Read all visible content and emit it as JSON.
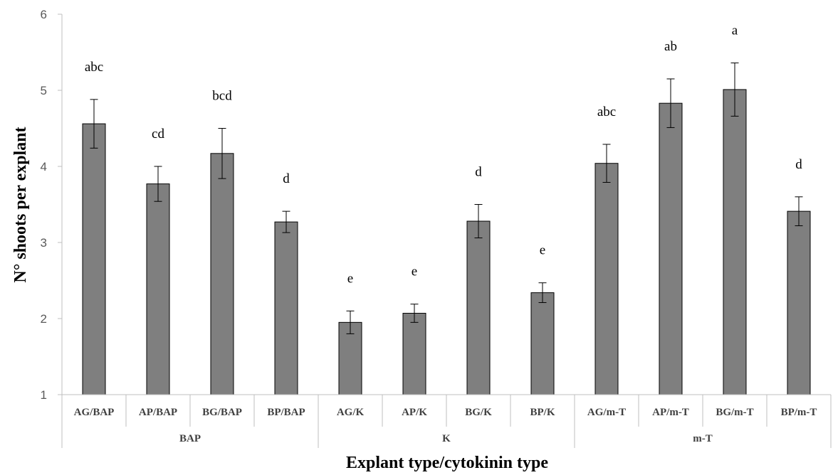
{
  "chart_data": {
    "type": "bar",
    "title": "",
    "xlabel": "Explant type/cytokinin type",
    "ylabel": "N° shoots per explant",
    "ylim": [
      1,
      6
    ],
    "yticks": [
      1,
      2,
      3,
      4,
      5,
      6
    ],
    "grid": false,
    "legend": "none",
    "bar_color": "#7f7f7f",
    "categories": [
      "AG/BAP",
      "AP/BAP",
      "BG/BAP",
      "BP/BAP",
      "AG/K",
      "AP/K",
      "BG/K",
      "BP/K",
      "AG/m-T",
      "AP/m-T",
      "BG/m-T",
      "BP/m-T"
    ],
    "values": [
      4.56,
      3.77,
      4.17,
      3.27,
      1.95,
      2.07,
      3.28,
      2.34,
      4.04,
      4.83,
      5.01,
      3.41
    ],
    "errors": [
      0.32,
      0.23,
      0.33,
      0.14,
      0.15,
      0.12,
      0.22,
      0.13,
      0.25,
      0.32,
      0.35,
      0.19
    ],
    "significance": [
      "abc",
      "cd",
      "bcd",
      "d",
      "e",
      "e",
      "d",
      "e",
      "abc",
      "ab",
      "a",
      "d"
    ],
    "groups": [
      {
        "label": "BAP",
        "size": 4
      },
      {
        "label": "K",
        "size": 4
      },
      {
        "label": "m-T",
        "size": 4
      }
    ]
  }
}
